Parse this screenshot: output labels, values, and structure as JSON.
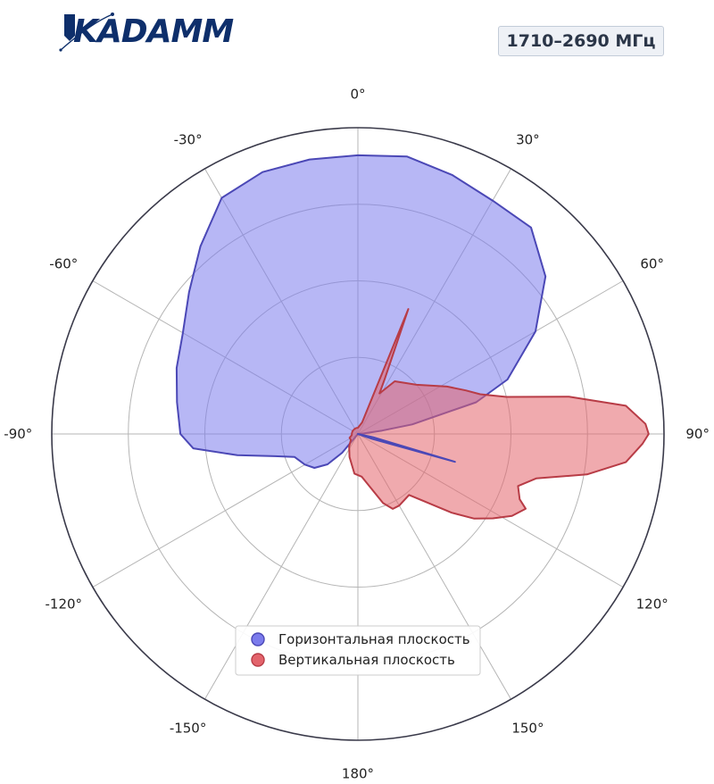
{
  "brand": {
    "logo_text": "KADAMM"
  },
  "badge": {
    "frequency": "1710–2690 МГц"
  },
  "colors": {
    "horizontal_fill": "#7b7bec",
    "horizontal_line": "#4b48b6",
    "vertical_fill": "#e3646c",
    "vertical_line": "#b83c46",
    "grid": "#b5b5b5",
    "outer_ring": "#3a3a4a"
  },
  "chart_data": {
    "type": "polar",
    "theta_zero": "top",
    "theta_direction": "clockwise",
    "r_range": [
      0,
      1
    ],
    "r_rings": [
      0.25,
      0.5,
      0.75,
      1.0
    ],
    "angle_labels": [
      "0°",
      "30°",
      "60°",
      "90°",
      "120°",
      "150°",
      "180°",
      "-150°",
      "-120°",
      "-90°",
      "-60°",
      "-30°"
    ],
    "angle_values": [
      0,
      30,
      60,
      90,
      120,
      150,
      180,
      210,
      240,
      270,
      300,
      330
    ],
    "grid": true,
    "legend_position": "lower-center",
    "series": [
      {
        "name": "Горизонтальная плоскость",
        "key": "horizontal",
        "angles_deg": [
          0,
          10,
          20,
          30,
          40,
          50,
          60,
          70,
          75,
          80,
          82,
          85,
          90,
          100,
          110,
          120,
          140,
          160,
          180,
          200,
          210,
          220,
          225,
          232,
          240,
          250,
          255,
          260,
          265,
          270,
          280,
          290,
          300,
          310,
          320,
          330,
          340,
          350
        ],
        "r": [
          0.91,
          0.92,
          0.9,
          0.88,
          0.88,
          0.8,
          0.67,
          0.52,
          0.4,
          0.18,
          0.08,
          0.02,
          0.0,
          0.0,
          0.0,
          0.0,
          0.0,
          0.0,
          0.0,
          0.0,
          0.0,
          0.08,
          0.14,
          0.18,
          0.2,
          0.22,
          0.28,
          0.4,
          0.54,
          0.58,
          0.6,
          0.63,
          0.66,
          0.72,
          0.8,
          0.89,
          0.91,
          0.91
        ]
      },
      {
        "name": "Вертикальная плоскость",
        "key": "vertical",
        "angles_deg": [
          0,
          20,
          22,
          26,
          28,
          35,
          50,
          62,
          68,
          72,
          76,
          80,
          84,
          88,
          90,
          92,
          96,
          100,
          104,
          108,
          112,
          114,
          118,
          122,
          126,
          130,
          140,
          150,
          155,
          160,
          175,
          185,
          200,
          215,
          230,
          245,
          260,
          275,
          300,
          330,
          350
        ],
        "r": [
          0.02,
          0.04,
          0.44,
          0.2,
          0.15,
          0.21,
          0.25,
          0.33,
          0.38,
          0.42,
          0.5,
          0.7,
          0.88,
          0.94,
          0.95,
          0.93,
          0.88,
          0.76,
          0.6,
          0.55,
          0.57,
          0.6,
          0.57,
          0.52,
          0.47,
          0.4,
          0.26,
          0.27,
          0.27,
          0.24,
          0.14,
          0.13,
          0.08,
          0.05,
          0.03,
          0.03,
          0.02,
          0.02,
          0.02,
          0.02,
          0.02
        ]
      }
    ],
    "spikes": [
      {
        "series": "horizontal",
        "angle_deg": 106,
        "r": 0.33
      }
    ]
  }
}
